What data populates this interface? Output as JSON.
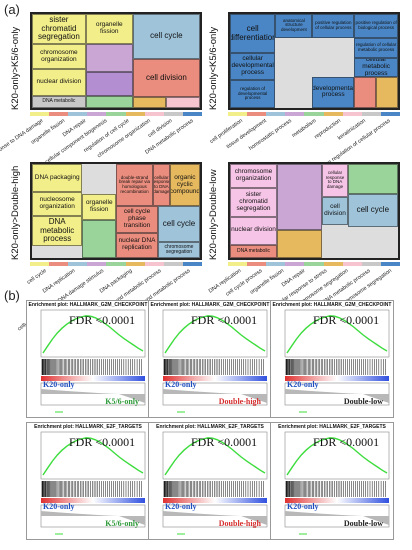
{
  "panel_a_label": "(a)",
  "panel_b_label": "(b)",
  "treemaps": [
    {
      "title": "K20-only>K5/6-only",
      "cells": [
        {
          "t": "sister chromatid segregation",
          "c": "#f2ee8a"
        },
        {
          "t": "organelle fission",
          "c": "#f2ee8a"
        },
        {
          "t": "chromosome organization",
          "c": "#f2ee8a"
        },
        {
          "t": "nuclear division",
          "c": "#f2ee8a"
        },
        {
          "t": "cell cycle",
          "c": "#9fc3d9"
        },
        {
          "t": "cell division",
          "c": "#ea8d7e"
        },
        {
          "t": "",
          "c": "#c9a6d4"
        },
        {
          "t": "",
          "c": "#b38fd1"
        },
        {
          "t": "",
          "c": "#e6b95f"
        },
        {
          "t": "DNA metabolic",
          "c": "#c8c8c8"
        },
        {
          "t": "",
          "c": "#9ad49a"
        },
        {
          "t": "",
          "c": "#f5c4cf"
        }
      ],
      "xlabels": [
        "cellular response to DNA damage",
        "organelle fission",
        "DNA repair",
        "cellular component biogenesis",
        "regulation of cell cycle",
        "chromosome organization",
        "cell division",
        "DNA metabolic process"
      ]
    },
    {
      "title": "K20-only<K5/6-only",
      "cells": [
        {
          "t": "cell differentiation",
          "c": "#4a86c5"
        },
        {
          "t": "anatomical structure development",
          "c": "#4a86c5"
        },
        {
          "t": "positive regulation of cellular process",
          "c": "#4a86c5"
        },
        {
          "t": "positive regulation of biological process",
          "c": "#4a86c5"
        },
        {
          "t": "cellular developmental process",
          "c": "#4a86c5"
        },
        {
          "t": "regulation of developmental process",
          "c": "#4a86c5"
        },
        {
          "t": "regulation of cellular metabolic process",
          "c": "#4a86c5"
        },
        {
          "t": "cellular metabolic process",
          "c": "#4a86c5"
        },
        {
          "t": "developmental process",
          "c": "#4a86c5"
        },
        {
          "t": "",
          "c": "#ea8d7e"
        },
        {
          "t": "",
          "c": "#e6b95f"
        }
      ],
      "xlabels": [
        "cell proliferation",
        "tissue development",
        "homeostatic process",
        "metabolism",
        "reproduction",
        "keratinization",
        "positive regulation of cellular process"
      ]
    },
    {
      "title": "K20-only>Double-high",
      "cells": [
        {
          "t": "DNA packaging",
          "c": "#f2ee8a"
        },
        {
          "t": "nucleosome organization",
          "c": "#f2ee8a"
        },
        {
          "t": "DNA metabolic process",
          "c": "#f2ee8a"
        },
        {
          "t": "organelle fission",
          "c": "#f2ee8a"
        },
        {
          "t": "double-strand break repair via homologous recombination",
          "c": "#ea8d7e"
        },
        {
          "t": "cellular response to DNA damage",
          "c": "#ea8d7e"
        },
        {
          "t": "cell cycle phase transition",
          "c": "#ea8d7e"
        },
        {
          "t": "nuclear DNA replication",
          "c": "#ea8d7e"
        },
        {
          "t": "cell cycle",
          "c": "#9fc3d9"
        },
        {
          "t": "chromosome segregation",
          "c": "#9fc3d9"
        },
        {
          "t": "organic cyclic compound",
          "c": "#e6b95f"
        },
        {
          "t": "",
          "c": "#9ad49a"
        }
      ],
      "xlabels": [
        "cell cycle",
        "DNA replication",
        "cellular response to DNA damage stimulus",
        "DNA packaging",
        "organic cyclic compound metabolic process",
        "nucleobase-containing compound metabolic process"
      ]
    },
    {
      "title": "K20-only>Double-low",
      "cells": [
        {
          "t": "chromosome organization",
          "c": "#f5c4e6"
        },
        {
          "t": "sister chromatid segregation",
          "c": "#f5c4e6"
        },
        {
          "t": "nuclear division",
          "c": "#f5c4e6"
        },
        {
          "t": "cellular response to DNA damage",
          "c": "#f5c4e6"
        },
        {
          "t": "cell cycle",
          "c": "#9fc3d9"
        },
        {
          "t": "cell division",
          "c": "#9fc3d9"
        },
        {
          "t": "DNA metabolic",
          "c": "#ea8d7e"
        },
        {
          "t": "",
          "c": "#e6b95f"
        },
        {
          "t": "",
          "c": "#c9a6d4"
        },
        {
          "t": "",
          "c": "#9ad49a"
        }
      ],
      "xlabels": [
        "DNA replication",
        "cell cycle process",
        "organelle fission",
        "DNA repair",
        "cellular response to stress",
        "chromosome segregation",
        "DNA metabolic process",
        "nuclear chromosome segregation"
      ]
    }
  ],
  "gsea": [
    {
      "title": "Enrichment plot: HALLMARK_G2M_CHECKPOINT",
      "fdr": "FDR <0.0001",
      "left": "K20-only",
      "right": "K5/6-only",
      "rc": "#2f9a3a"
    },
    {
      "title": "Enrichment plot: HALLMARK_G2M_CHECKPOINT",
      "fdr": "FDR <0.0001",
      "left": "K20-only",
      "right": "Double-high",
      "rc": "#d62f2f"
    },
    {
      "title": "Enrichment plot: HALLMARK_G2M_CHECKPOINT",
      "fdr": "FDR <0.0001",
      "left": "K20-only",
      "right": "Double-low",
      "rc": "#222222"
    },
    {
      "title": "Enrichment plot: HALLMARK_E2F_TARGETS",
      "fdr": "FDR <0.0001",
      "left": "K20-only",
      "right": "K5/6-only",
      "rc": "#2f9a3a"
    },
    {
      "title": "Enrichment plot: HALLMARK_E2F_TARGETS",
      "fdr": "FDR <0.0001",
      "left": "K20-only",
      "right": "Double-high",
      "rc": "#d62f2f"
    },
    {
      "title": "Enrichment plot: HALLMARK_E2F_TARGETS",
      "fdr": "FDR <0.0001",
      "left": "K20-only",
      "right": "Double-low",
      "rc": "#222222"
    }
  ],
  "colors": {
    "left_label": "#1f4fbf",
    "curve": "#3ddc3d",
    "heat_red": "#e03030",
    "heat_blue": "#3050e0"
  }
}
